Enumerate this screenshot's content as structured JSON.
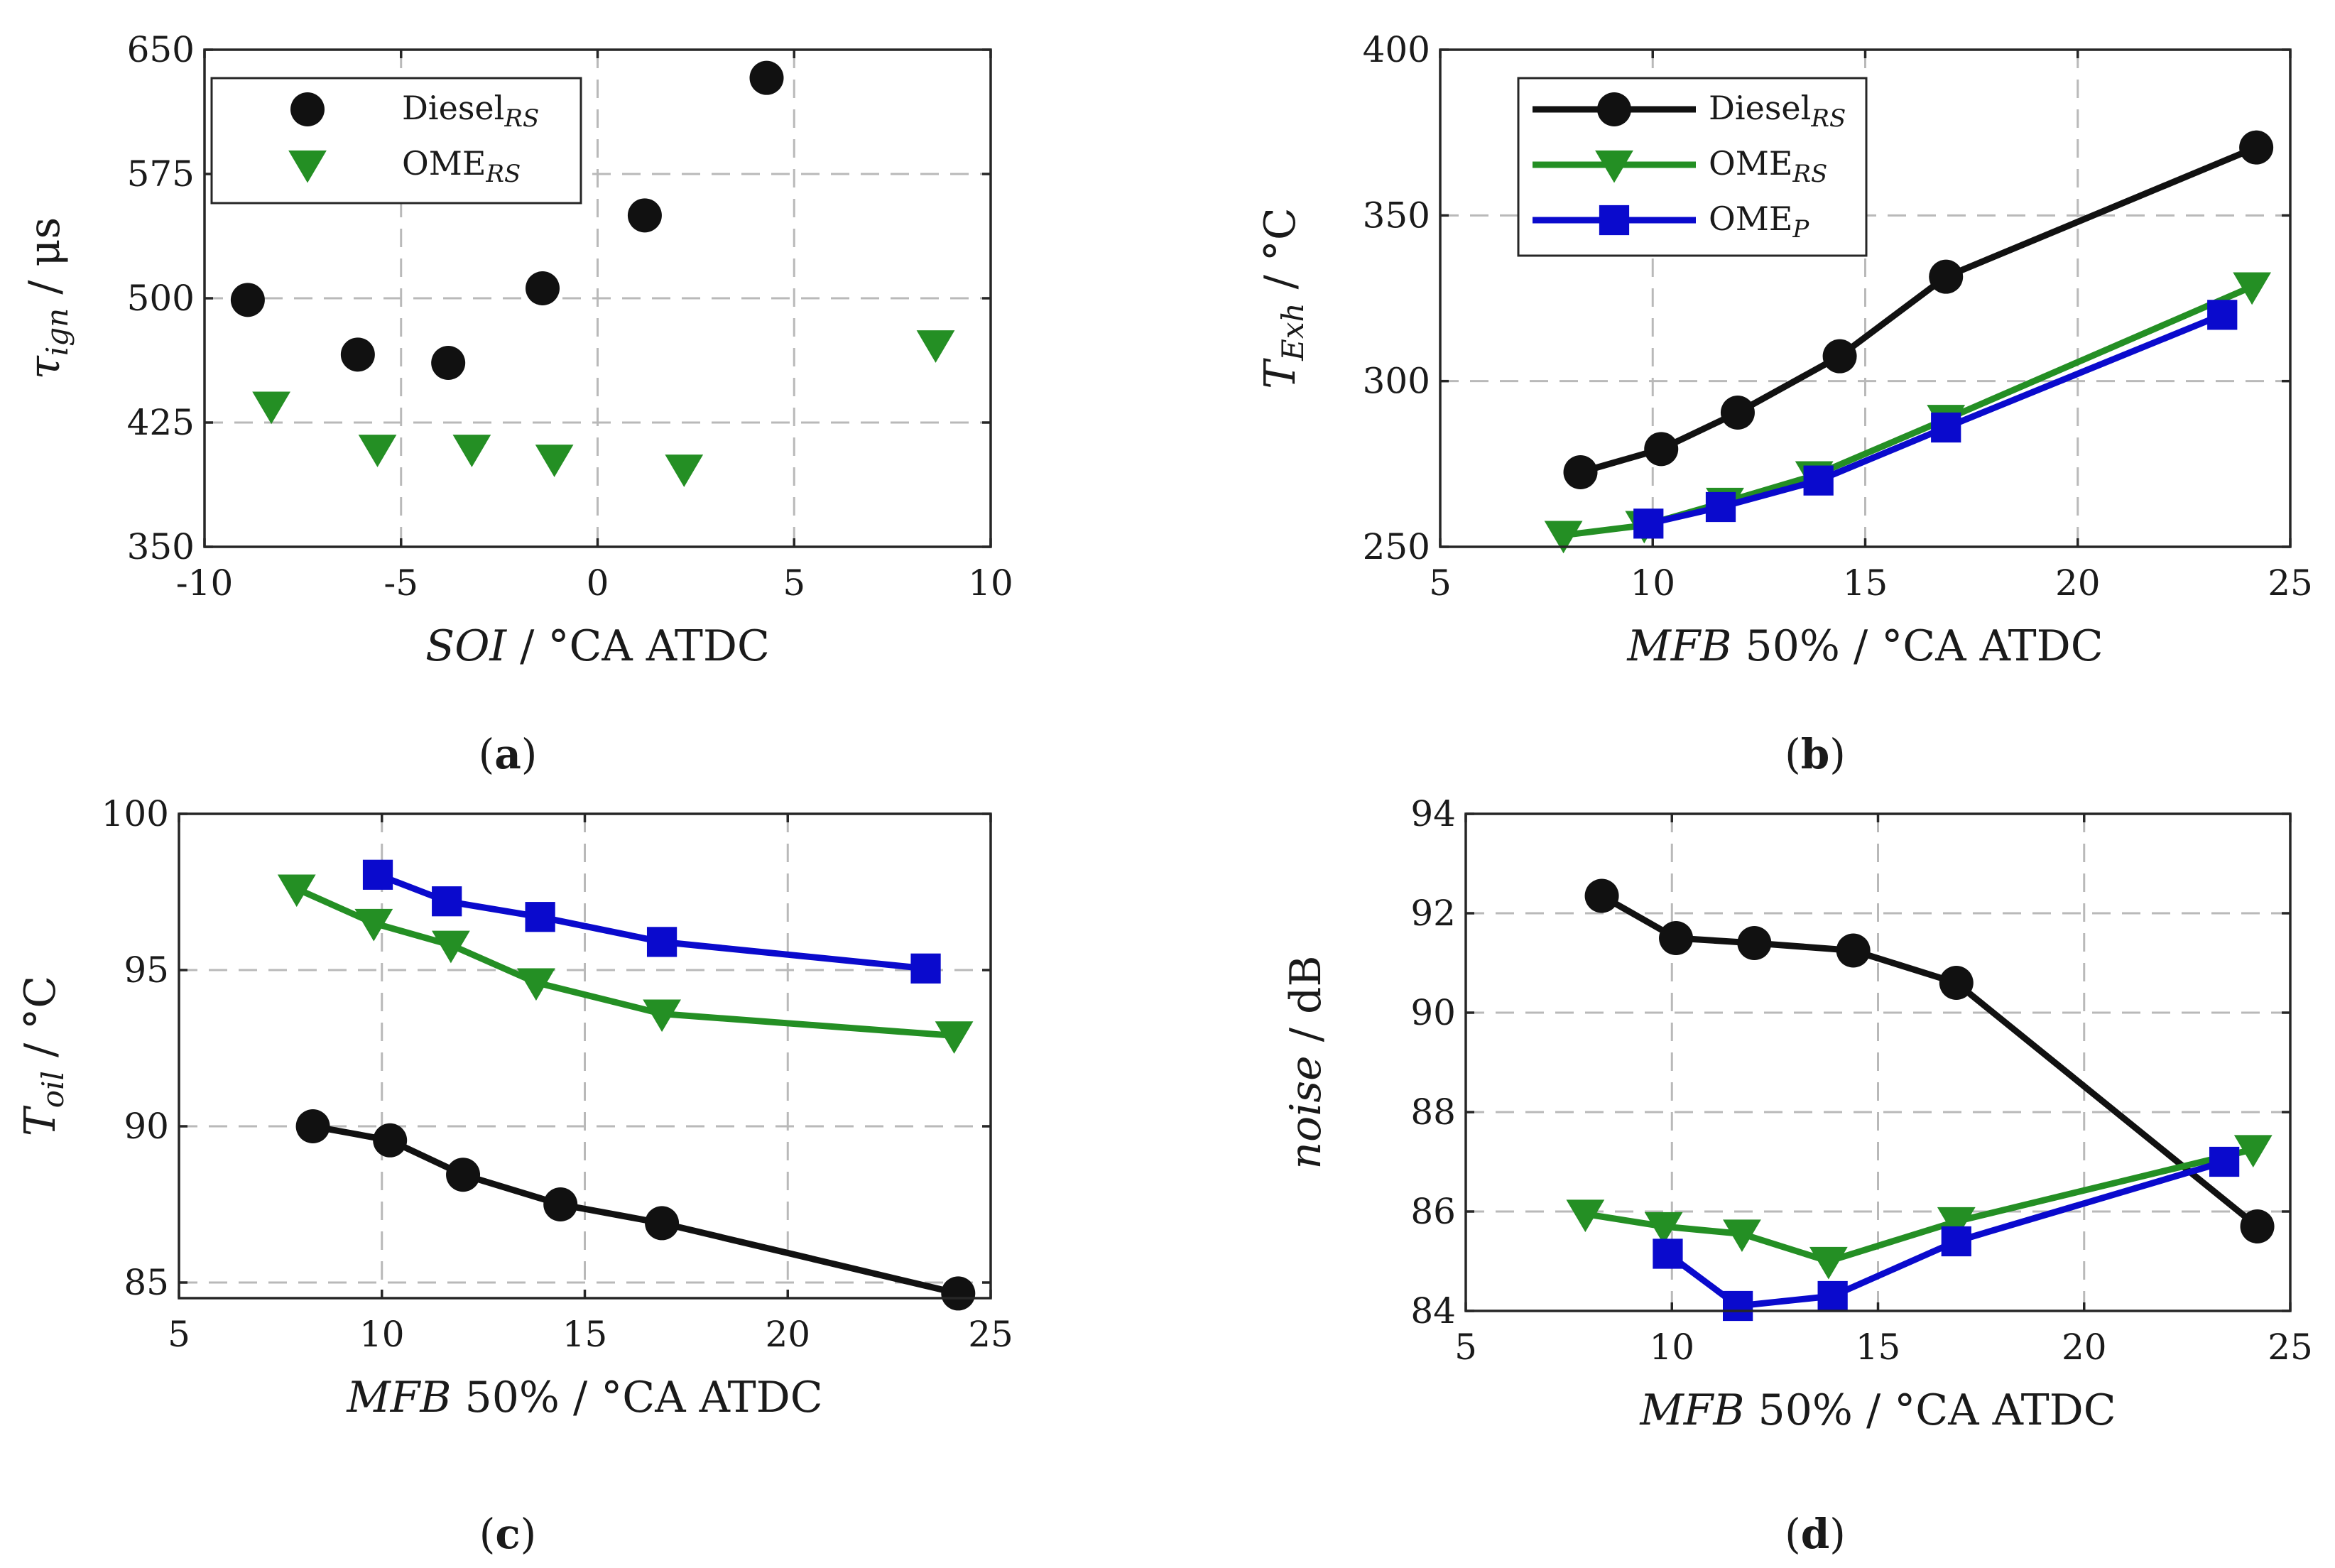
{
  "colors": {
    "Diesel_RS": "#111111",
    "OME_RS": "#248F24",
    "OME_P": "#0A0ACD",
    "grid": "#b9b9b9",
    "axis": "#262626"
  },
  "chart_data": [
    {
      "panel": "a",
      "caption": "a",
      "type": "scatter",
      "title": "",
      "xlabel": {
        "main": "SOI",
        "unit": "°CA ATDC"
      },
      "ylabel": {
        "main": "τ",
        "sub": "ign",
        "unit": "μs"
      },
      "xlim": [
        -10,
        10
      ],
      "ylim": [
        350,
        650
      ],
      "xticks": [
        -10,
        -5,
        0,
        5,
        10
      ],
      "yticks": [
        350,
        425,
        500,
        575,
        650
      ],
      "xtick_labels": [
        "-10",
        "-5",
        "0",
        "5",
        "10"
      ],
      "ytick_labels": [
        "350",
        "425",
        "500",
        "575",
        "650"
      ],
      "grid": true,
      "legend_position": "top-left",
      "series": [
        {
          "key": "Diesel_RS",
          "name": "Diesel",
          "sub": "RS",
          "marker": "circle",
          "line": false,
          "x": [
            -8.9,
            -6.1,
            -3.8,
            -1.4,
            1.2,
            4.3
          ],
          "y": [
            499,
            466,
            461,
            506,
            550,
            633
          ]
        },
        {
          "key": "OME_RS",
          "name": "OME",
          "sub": "RS",
          "marker": "triangle-down",
          "line": false,
          "x": [
            -8.3,
            -5.6,
            -3.2,
            -1.1,
            2.2,
            8.6
          ],
          "y": [
            435,
            409,
            409,
            403,
            397,
            472
          ]
        }
      ]
    },
    {
      "panel": "b",
      "caption": "b",
      "type": "line",
      "title": "",
      "xlabel": {
        "main": "MFB",
        "mid": "50%",
        "unit": "°CA ATDC"
      },
      "ylabel": {
        "main": "T",
        "sub": "Exh",
        "unit": "°C"
      },
      "xlim": [
        5,
        25
      ],
      "ylim": [
        250,
        400
      ],
      "xticks": [
        5,
        10,
        15,
        20,
        25
      ],
      "yticks": [
        250,
        300,
        350,
        400
      ],
      "xtick_labels": [
        "5",
        "10",
        "15",
        "20",
        "25"
      ],
      "ytick_labels": [
        "250",
        "300",
        "350",
        "400"
      ],
      "grid": true,
      "legend_position": "top-left",
      "series": [
        {
          "key": "Diesel_RS",
          "name": "Diesel",
          "sub": "RS",
          "marker": "circle",
          "line": true,
          "x": [
            8.3,
            10.2,
            12.0,
            14.4,
            16.9,
            24.2
          ],
          "y": [
            272.5,
            279.5,
            290.5,
            307.5,
            331.5,
            370.5
          ]
        },
        {
          "key": "OME_RS",
          "name": "OME",
          "sub": "RS",
          "marker": "triangle-down",
          "line": true,
          "x": [
            7.9,
            9.8,
            11.7,
            13.8,
            16.9,
            24.1
          ],
          "y": [
            253.5,
            256.5,
            263.5,
            271.5,
            288.5,
            328.5
          ]
        },
        {
          "key": "OME_P",
          "name": "OME",
          "sub": "P",
          "marker": "square",
          "line": true,
          "x": [
            9.9,
            11.6,
            13.9,
            16.9,
            23.4
          ],
          "y": [
            257,
            262,
            270,
            286,
            320
          ]
        }
      ]
    },
    {
      "panel": "c",
      "caption": "c",
      "type": "line",
      "title": "",
      "xlabel": {
        "main": "MFB",
        "mid": "50%",
        "unit": "°CA ATDC"
      },
      "ylabel": {
        "main": "T",
        "sub": "oil",
        "unit": "°C"
      },
      "xlim": [
        5,
        25
      ],
      "ylim": [
        84.5,
        100
      ],
      "xticks": [
        5,
        10,
        15,
        20,
        25
      ],
      "yticks": [
        85,
        90,
        95,
        100
      ],
      "xtick_labels": [
        "5",
        "10",
        "15",
        "20",
        "25"
      ],
      "ytick_labels": [
        "85",
        "90",
        "95",
        "100"
      ],
      "grid": true,
      "legend_position": "none",
      "series": [
        {
          "key": "Diesel_RS",
          "name": "Diesel",
          "sub": "RS",
          "marker": "circle",
          "line": true,
          "x": [
            8.3,
            10.2,
            12.0,
            14.4,
            16.9,
            24.2
          ],
          "y": [
            90.0,
            89.55,
            88.45,
            87.5,
            86.9,
            84.65
          ]
        },
        {
          "key": "OME_RS",
          "name": "OME",
          "sub": "RS",
          "marker": "triangle-down",
          "line": true,
          "x": [
            7.9,
            9.8,
            11.7,
            13.8,
            16.9,
            24.1
          ],
          "y": [
            97.6,
            96.5,
            95.8,
            94.6,
            93.6,
            92.9
          ]
        },
        {
          "key": "OME_P",
          "name": "OME",
          "sub": "P",
          "marker": "square",
          "line": true,
          "x": [
            9.9,
            11.6,
            13.9,
            16.9,
            23.4
          ],
          "y": [
            98.05,
            97.2,
            96.7,
            95.9,
            95.05
          ]
        }
      ]
    },
    {
      "panel": "d",
      "caption": "d",
      "type": "line",
      "title": "",
      "xlabel": {
        "main": "MFB",
        "mid": "50%",
        "unit": "°CA ATDC"
      },
      "ylabel": {
        "main": "noise",
        "unit": "dB"
      },
      "xlim": [
        5,
        25
      ],
      "ylim": [
        84,
        94
      ],
      "xticks": [
        5,
        10,
        15,
        20,
        25
      ],
      "yticks": [
        84,
        86,
        88,
        90,
        92,
        94
      ],
      "xtick_labels": [
        "5",
        "10",
        "15",
        "20",
        "25"
      ],
      "ytick_labels": [
        "84",
        "86",
        "88",
        "90",
        "92",
        "94"
      ],
      "grid": true,
      "legend_position": "none",
      "series": [
        {
          "key": "Diesel_RS",
          "name": "Diesel",
          "sub": "RS",
          "marker": "circle",
          "line": true,
          "x": [
            8.3,
            10.1,
            12.0,
            14.4,
            16.9,
            24.2
          ],
          "y": [
            92.35,
            91.5,
            91.4,
            91.25,
            90.6,
            85.7
          ]
        },
        {
          "key": "OME_RS",
          "name": "OME",
          "sub": "RS",
          "marker": "triangle-down",
          "line": true,
          "x": [
            7.9,
            9.8,
            11.7,
            13.8,
            16.9,
            24.1
          ],
          "y": [
            85.95,
            85.7,
            85.55,
            85.0,
            85.8,
            87.25
          ]
        },
        {
          "key": "OME_P",
          "name": "OME",
          "sub": "P",
          "marker": "square",
          "line": true,
          "x": [
            9.9,
            11.6,
            13.9,
            16.9,
            23.4
          ],
          "y": [
            85.15,
            84.1,
            84.3,
            85.4,
            87.0
          ]
        }
      ]
    }
  ]
}
